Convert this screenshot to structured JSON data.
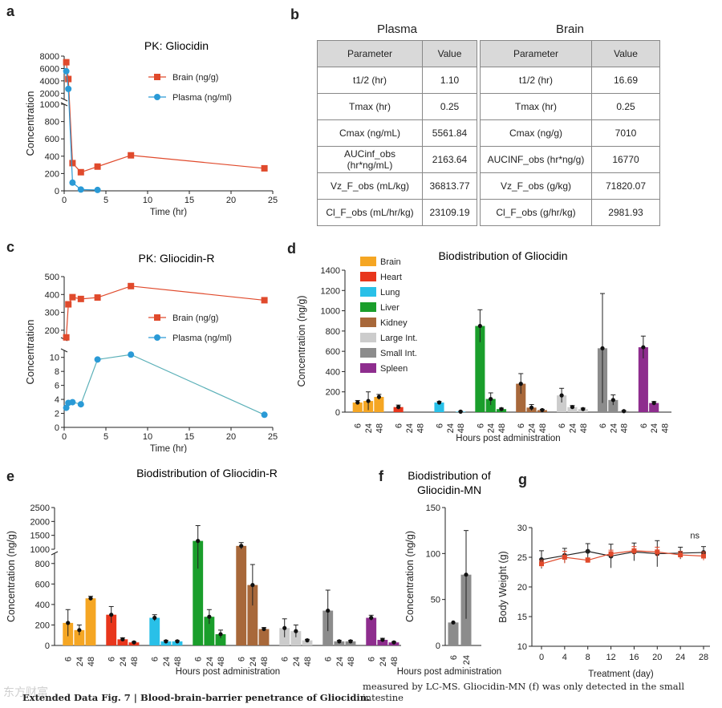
{
  "panels": {
    "a": "a",
    "b": "b",
    "c": "c",
    "d": "d",
    "e": "e",
    "f": "f",
    "g": "g"
  },
  "table_b": {
    "plasma_title": "Plasma",
    "brain_title": "Brain",
    "header_param": "Parameter",
    "header_value": "Value",
    "plasma_rows": [
      {
        "param": "t1/2 (hr)",
        "value": "1.10"
      },
      {
        "param": "Tmax (hr)",
        "value": "0.25"
      },
      {
        "param": "Cmax (ng/mL)",
        "value": "5561.84"
      },
      {
        "param": "AUCinf_obs (hr*ng/mL)",
        "value": "2163.64"
      },
      {
        "param": "Vz_F_obs (mL/kg)",
        "value": "36813.77"
      },
      {
        "param": "Cl_F_obs (mL/hr/kg)",
        "value": "23109.19"
      }
    ],
    "brain_rows": [
      {
        "param": "t1/2 (hr)",
        "value": "16.69"
      },
      {
        "param": "Tmax (hr)",
        "value": "0.25"
      },
      {
        "param": "Cmax (ng/g)",
        "value": "7010"
      },
      {
        "param": "AUCINF_obs (hr*ng/g)",
        "value": "16770"
      },
      {
        "param": "Vz_F_obs (g/kg)",
        "value": "71820.07"
      },
      {
        "param": "Cl_F_obs (g/hr/kg)",
        "value": "2981.93"
      }
    ]
  },
  "caption_left": "Extended Data Fig. 7 | Blood-brain-barrier penetrance of Gliocidin.",
  "caption_right": "measured by LC-MS. Gliocidin-MN (f) was only detected in the small intestine",
  "watermark": "东方财富",
  "colors": {
    "brain": "#f5a623",
    "heart": "#e8361c",
    "lung": "#29c0e8",
    "liver": "#1a9e2b",
    "kidney": "#a8683a",
    "large": "#cccccc",
    "small": "#8c8c8c",
    "spleen": "#8e2d8e",
    "pk_brain": "#e04a2c",
    "pk_plasma": "#2a9ad6",
    "teal": "#5bb0b8"
  },
  "chart_data": [
    {
      "id": "a",
      "type": "line",
      "title": "PK: Gliocidin",
      "xlabel": "Time (hr)",
      "ylabel": "Concentration",
      "xlim": [
        0,
        25
      ],
      "xticks": [
        0,
        5,
        10,
        15,
        20,
        25
      ],
      "yticks_lower": [
        0,
        200,
        400,
        600,
        800,
        1000
      ],
      "yticks_upper": [
        2000,
        4000,
        6000,
        8000
      ],
      "broken_axis": true,
      "series": [
        {
          "name": "Brain (ng/g)",
          "x": [
            0.25,
            0.5,
            1,
            2,
            4,
            8,
            24
          ],
          "y": [
            7010,
            4300,
            320,
            215,
            280,
            410,
            260
          ]
        },
        {
          "name": "Plasma (ng/ml)",
          "x": [
            0.25,
            0.5,
            1,
            2,
            4
          ],
          "y": [
            5562,
            2700,
            95,
            15,
            10
          ]
        }
      ]
    },
    {
      "id": "c",
      "type": "line",
      "title": "PK: Gliocidin-R",
      "xlabel": "Time (hr)",
      "ylabel": "Concentration",
      "xlim": [
        0,
        25
      ],
      "xticks": [
        0,
        5,
        10,
        15,
        20,
        25
      ],
      "yticks_lower": [
        0,
        2,
        4,
        6,
        8,
        10
      ],
      "yticks_upper": [
        200,
        300,
        400,
        500
      ],
      "broken_axis": true,
      "series": [
        {
          "name": "Brain (ng/g)",
          "x": [
            0.25,
            0.5,
            1,
            2,
            4,
            8,
            24
          ],
          "y": [
            160,
            345,
            385,
            375,
            383,
            447,
            368
          ]
        },
        {
          "name": "Plasma (ng/ml)",
          "x": [
            0.25,
            0.5,
            1,
            2,
            4,
            8,
            24
          ],
          "y": [
            2.8,
            3.5,
            3.6,
            3.3,
            9.7,
            10.4,
            1.8
          ]
        }
      ]
    },
    {
      "id": "d",
      "type": "bar",
      "title": "Biodistribution of Gliocidin",
      "xlabel": "Hours post administration",
      "ylabel": "Concentration (ng/g)",
      "ylim": [
        0,
        1400
      ],
      "yticks": [
        0,
        200,
        400,
        600,
        800,
        1000,
        1200,
        1400
      ],
      "timepoints": [
        "6",
        "24",
        "48"
      ],
      "series": [
        {
          "name": "Brain",
          "values": [
            95,
            110,
            150
          ],
          "err": [
            20,
            90,
            25
          ]
        },
        {
          "name": "Heart",
          "values": [
            50,
            0,
            0
          ],
          "err": [
            20,
            0,
            0
          ]
        },
        {
          "name": "Lung",
          "values": [
            95,
            0,
            5
          ],
          "err": [
            10,
            0,
            3
          ]
        },
        {
          "name": "Liver",
          "values": [
            850,
            130,
            30
          ],
          "err": [
            160,
            60,
            10
          ]
        },
        {
          "name": "Kidney",
          "values": [
            280,
            45,
            20
          ],
          "err": [
            100,
            30,
            8
          ]
        },
        {
          "name": "Large Int.",
          "values": [
            165,
            50,
            30
          ],
          "err": [
            70,
            15,
            10
          ]
        },
        {
          "name": "Small Int.",
          "values": [
            630,
            120,
            10
          ],
          "err": [
            540,
            50,
            5
          ]
        },
        {
          "name": "Spleen",
          "values": [
            640,
            90,
            0
          ],
          "err": [
            110,
            15,
            0
          ]
        }
      ]
    },
    {
      "id": "e",
      "type": "bar",
      "title": "Biodistribution of Gliocidin-R",
      "xlabel": "Hours post administration",
      "ylabel": "Concentration (ng/g)",
      "broken_axis": true,
      "yticks_lower": [
        0,
        200,
        400,
        600,
        800
      ],
      "yticks_upper": [
        1000,
        1500,
        2000,
        2500
      ],
      "timepoints": [
        "6",
        "24",
        "48"
      ],
      "series": [
        {
          "name": "Brain",
          "values": [
            220,
            150,
            460
          ],
          "err": [
            130,
            50,
            20
          ]
        },
        {
          "name": "Heart",
          "values": [
            300,
            60,
            30
          ],
          "err": [
            80,
            15,
            8
          ]
        },
        {
          "name": "Lung",
          "values": [
            270,
            40,
            40
          ],
          "err": [
            30,
            10,
            8
          ]
        },
        {
          "name": "Liver",
          "values": [
            1300,
            280,
            110
          ],
          "err": [
            550,
            70,
            40
          ]
        },
        {
          "name": "Kidney",
          "values": [
            1120,
            590,
            160
          ],
          "err": [
            120,
            200,
            15
          ]
        },
        {
          "name": "Large Int.",
          "values": [
            170,
            140,
            50
          ],
          "err": [
            90,
            60,
            10
          ]
        },
        {
          "name": "Small Int.",
          "values": [
            340,
            40,
            40
          ],
          "err": [
            200,
            10,
            10
          ]
        },
        {
          "name": "Spleen",
          "values": [
            270,
            55,
            30
          ],
          "err": [
            25,
            15,
            8
          ]
        }
      ]
    },
    {
      "id": "f",
      "type": "bar",
      "title": "Biodistribution of Gliocidin-MN",
      "xlabel": "Hours post administration",
      "ylabel": "Concentration (ng/g)",
      "ylim": [
        0,
        150
      ],
      "yticks": [
        0,
        50,
        100,
        150
      ],
      "categories": [
        "6",
        "24"
      ],
      "values": [
        25,
        77
      ],
      "err": [
        0,
        48
      ]
    },
    {
      "id": "g",
      "type": "line",
      "xlabel": "Treatment (day)",
      "ylabel": "Body Weight (g)",
      "ylim": [
        10,
        30
      ],
      "yticks": [
        10,
        15,
        20,
        25,
        30
      ],
      "xticks": [
        0,
        4,
        8,
        12,
        16,
        20,
        24,
        28
      ],
      "annotation": "ns",
      "series": [
        {
          "x": [
            0,
            4,
            8,
            12,
            16,
            20,
            24,
            28
          ],
          "y": [
            24.6,
            25.3,
            26.0,
            25.2,
            25.9,
            25.6,
            25.7,
            25.8
          ],
          "err": [
            1.5,
            1.2,
            1.3,
            2.0,
            1.5,
            2.2,
            1.0,
            1.0
          ]
        },
        {
          "x": [
            0,
            4,
            8,
            12,
            16,
            20,
            24,
            28
          ],
          "y": [
            23.9,
            25.0,
            24.5,
            25.6,
            26.1,
            25.9,
            25.4,
            25.2
          ],
          "err": [
            0.6,
            1.0,
            0.4,
            0.6,
            0.7,
            0.8,
            0.6,
            0.7
          ]
        }
      ]
    }
  ]
}
